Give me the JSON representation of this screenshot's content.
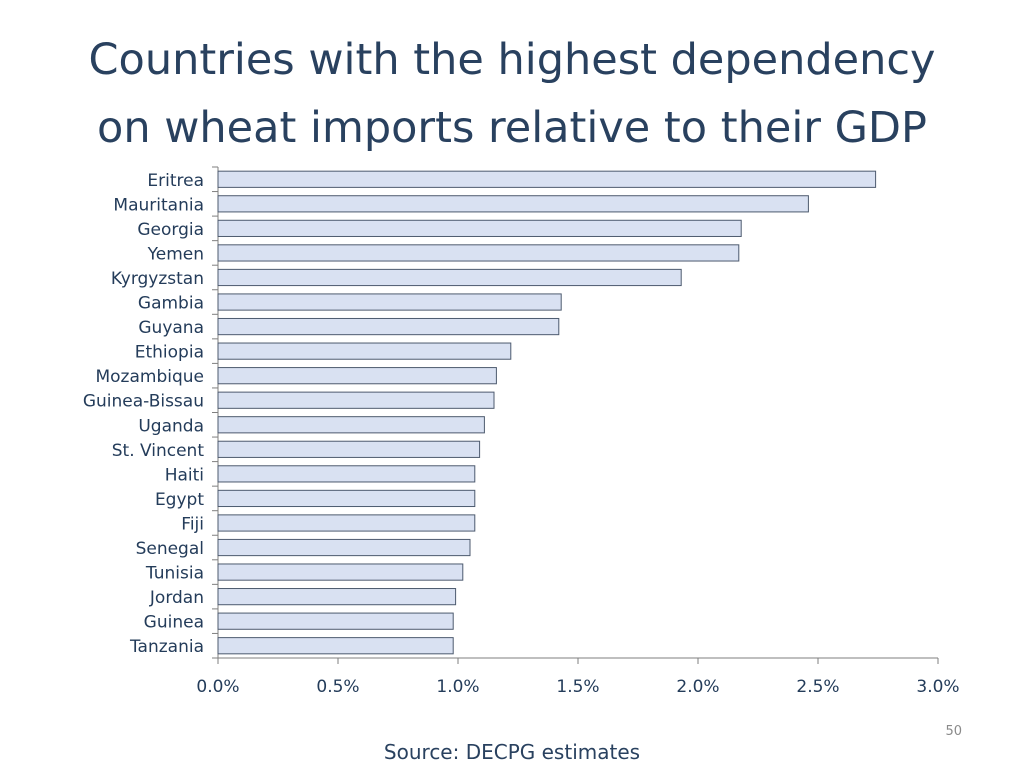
{
  "slide": {
    "title_line1": "Countries with the highest dependency",
    "title_line2": "on wheat imports relative to their GDP",
    "source": "Source: DECPG estimates",
    "page_number": "50"
  },
  "colors": {
    "bar_fill": "#d9e1f2",
    "bar_stroke": "#4d5a6e",
    "axis": "#7f7f7f",
    "text": "#243c5a"
  },
  "chart_data": {
    "type": "bar",
    "orientation": "horizontal",
    "categories": [
      "Eritrea",
      "Mauritania",
      "Georgia",
      "Yemen",
      "Kyrgyzstan",
      "Gambia",
      "Guyana",
      "Ethiopia",
      "Mozambique",
      "Guinea-Bissau",
      "Uganda",
      "St. Vincent",
      "Haiti",
      "Egypt",
      "Fiji",
      "Senegal",
      "Tunisia",
      "Jordan",
      "Guinea",
      "Tanzania"
    ],
    "values": [
      2.74,
      2.46,
      2.18,
      2.17,
      1.93,
      1.43,
      1.42,
      1.22,
      1.16,
      1.15,
      1.11,
      1.09,
      1.07,
      1.07,
      1.07,
      1.05,
      1.02,
      0.99,
      0.98,
      0.98
    ],
    "xlim": [
      0,
      3.0
    ],
    "xticks": [
      "0.0%",
      "0.5%",
      "1.0%",
      "1.5%",
      "2.0%",
      "2.5%",
      "3.0%"
    ],
    "grid": false,
    "legend": "none"
  }
}
